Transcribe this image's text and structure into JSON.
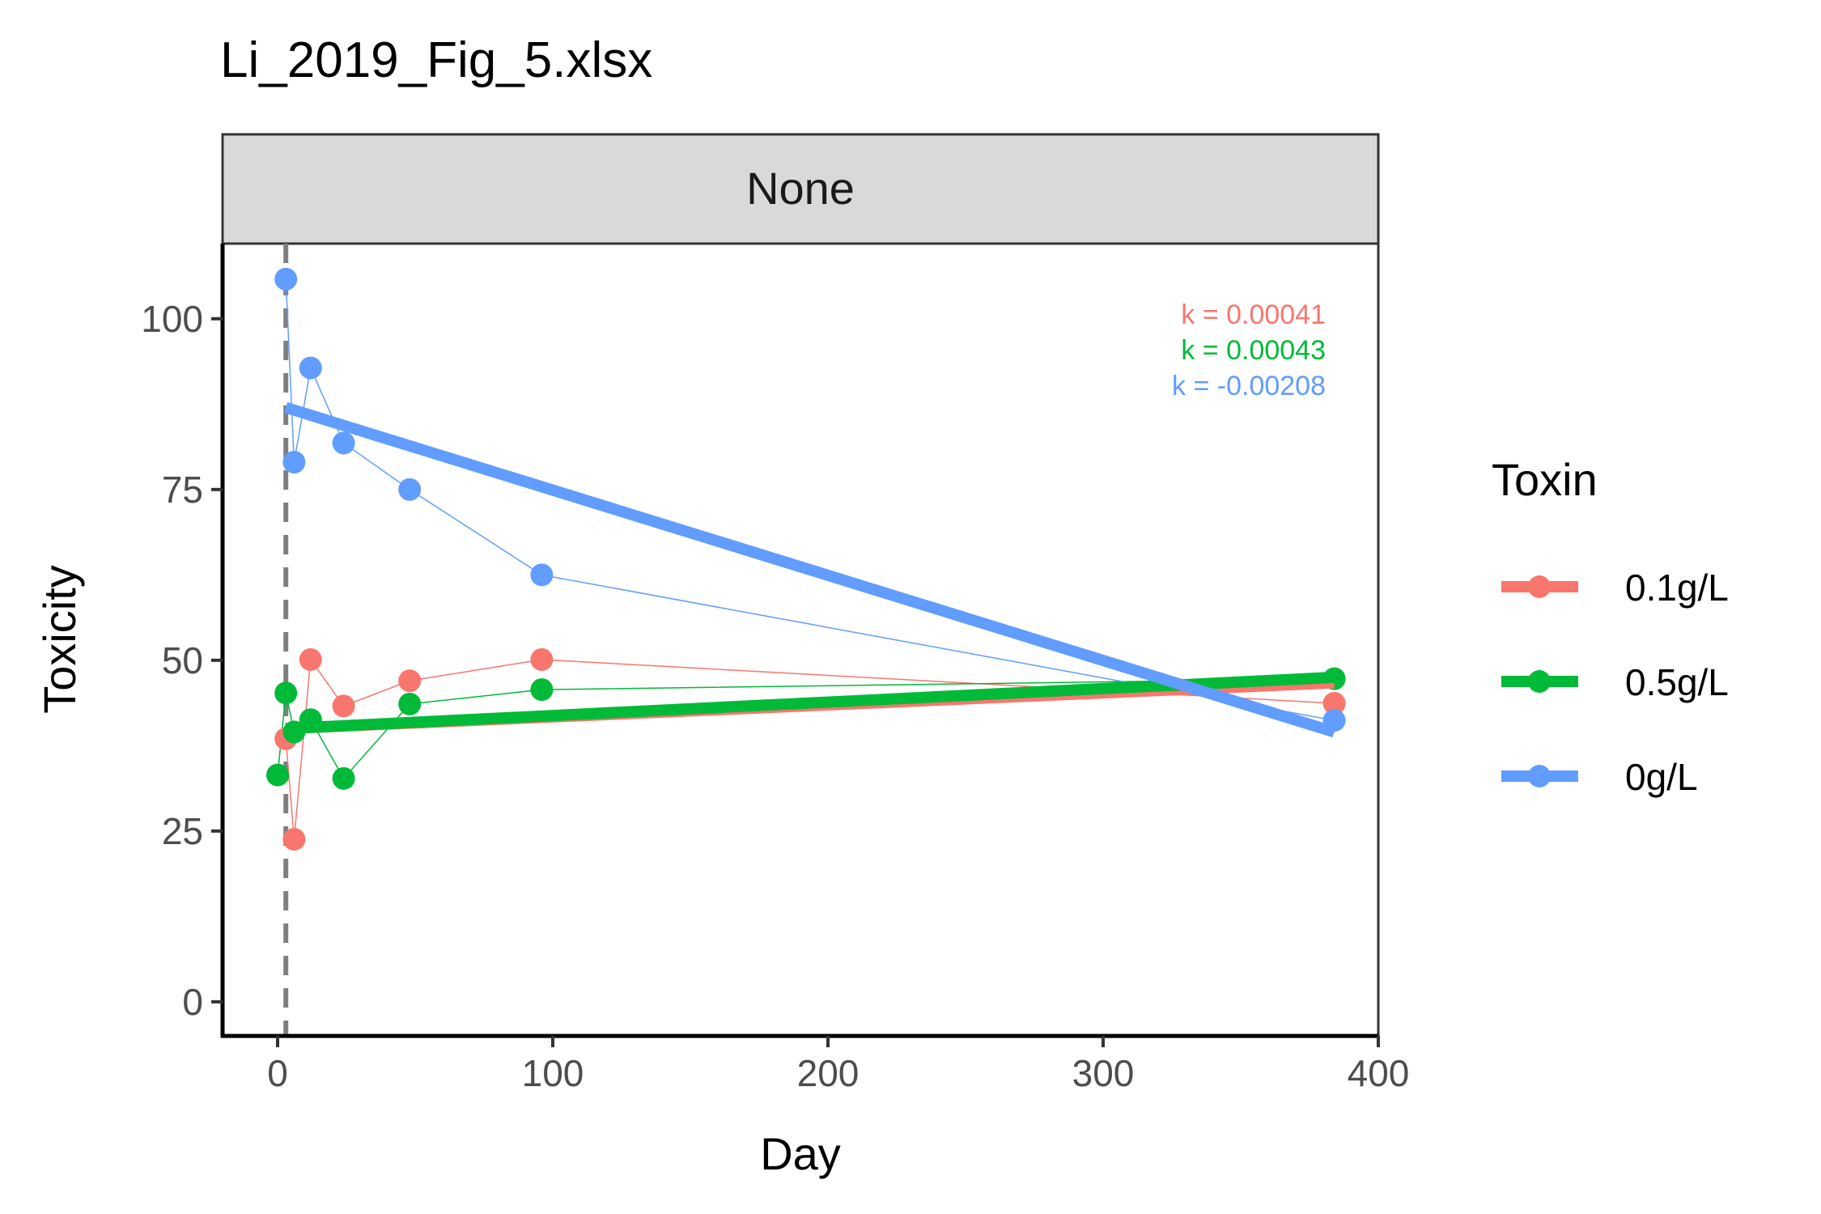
{
  "chart_data": {
    "type": "line",
    "title": "Li_2019_Fig_5.xlsx",
    "facet_label": "None",
    "xlabel": "Day",
    "ylabel": "Toxicity",
    "xlim": [
      -20,
      400
    ],
    "ylim": [
      -5,
      111
    ],
    "x_ticks": [
      0,
      100,
      200,
      300,
      400
    ],
    "y_ticks": [
      0,
      25,
      50,
      75,
      100
    ],
    "vline_x": 3,
    "legend": {
      "title": "Toxin",
      "position": "right"
    },
    "grid": false,
    "series": [
      {
        "name": "0.1g/L",
        "color": "#F8766D",
        "x": [
          3,
          6,
          12,
          24,
          48,
          96,
          384
        ],
        "y": [
          38.5,
          23.8,
          50.1,
          43.3,
          47.0,
          50.1,
          43.7
        ],
        "fit_x": [
          3,
          384
        ],
        "fit_y": [
          40.0,
          46.7
        ],
        "k_label": "k = 0.00041"
      },
      {
        "name": "0.5g/L",
        "color": "#00BA38",
        "x": [
          0,
          3,
          6,
          12,
          24,
          48,
          96,
          384
        ],
        "y": [
          33.2,
          45.2,
          39.5,
          41.3,
          32.7,
          43.6,
          45.7,
          47.3
        ],
        "fit_x": [
          3,
          384
        ],
        "fit_y": [
          40.0,
          47.5
        ],
        "k_label": "k = 0.00043"
      },
      {
        "name": "0g/L",
        "color": "#619CFF",
        "x": [
          3,
          6,
          12,
          24,
          48,
          96,
          384
        ],
        "y": [
          105.8,
          79.0,
          92.8,
          81.8,
          75.0,
          62.5,
          41.2
        ],
        "fit_x": [
          3,
          384
        ],
        "fit_y": [
          87.0,
          39.5
        ],
        "k_label": "k = -0.00208"
      }
    ]
  }
}
